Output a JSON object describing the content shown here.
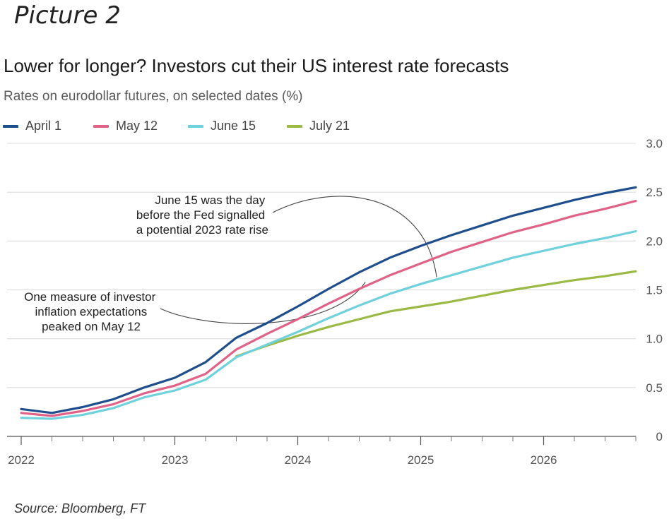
{
  "header": {
    "picture_label": "Picture 2"
  },
  "footer": {
    "source": "Source: Bloomberg, FT"
  },
  "chart_data": {
    "type": "line",
    "title": "Lower for longer? Investors cut their US interest rate forecasts",
    "subtitle": "Rates on eurodollar futures, on selected dates (%)",
    "xlabel": "",
    "ylabel": "",
    "x_ticks": [
      "2022",
      "2023",
      "2024",
      "2025",
      "2026"
    ],
    "x_tick_values": [
      2022.0,
      2023.25,
      2024.25,
      2025.25,
      2026.25
    ],
    "xlim": [
      2022.0,
      2027.0
    ],
    "y_ticks": [
      "0",
      "0.5",
      "1.0",
      "1.5",
      "2.0",
      "2.5",
      "3.0"
    ],
    "y_tick_values": [
      0,
      0.5,
      1.0,
      1.5,
      2.0,
      2.5,
      3.0
    ],
    "ylim": [
      0,
      3.0
    ],
    "grid": true,
    "y_axis_side": "right",
    "legend_position": "top-left",
    "x": [
      2022.0,
      2022.25,
      2022.5,
      2022.75,
      2023.0,
      2023.25,
      2023.5,
      2023.75,
      2024.0,
      2024.25,
      2024.5,
      2024.75,
      2025.0,
      2025.25,
      2025.5,
      2025.75,
      2026.0,
      2026.25,
      2026.5,
      2026.75,
      2027.0
    ],
    "series": [
      {
        "name": "April 1",
        "color": "#1f4e8c",
        "values": [
          0.28,
          0.24,
          0.3,
          0.38,
          0.5,
          0.6,
          0.76,
          1.01,
          1.16,
          1.33,
          1.51,
          1.68,
          1.83,
          1.95,
          2.06,
          2.16,
          2.26,
          2.34,
          2.42,
          2.49,
          2.55
        ]
      },
      {
        "name": "May 12",
        "color": "#e06287",
        "values": [
          0.24,
          0.21,
          0.26,
          0.33,
          0.44,
          0.52,
          0.64,
          0.89,
          1.05,
          1.2,
          1.36,
          1.51,
          1.65,
          1.77,
          1.89,
          1.99,
          2.09,
          2.17,
          2.26,
          2.33,
          2.41
        ]
      },
      {
        "name": "June 15",
        "color": "#6fd1dc",
        "values": [
          0.19,
          0.18,
          0.22,
          0.29,
          0.4,
          0.47,
          0.58,
          0.81,
          0.94,
          1.07,
          1.21,
          1.34,
          1.46,
          1.56,
          1.65,
          1.74,
          1.83,
          1.9,
          1.97,
          2.03,
          2.1
        ]
      },
      {
        "name": "July 21",
        "color": "#9aba45",
        "values": [
          null,
          null,
          null,
          null,
          null,
          null,
          null,
          0.82,
          0.93,
          1.03,
          1.12,
          1.2,
          1.28,
          1.33,
          1.38,
          1.44,
          1.5,
          1.55,
          1.6,
          1.64,
          1.69
        ]
      }
    ],
    "annotations": [
      {
        "lines": [
          "June 15 was the day",
          "before the Fed signalled",
          "a potential 2023 rate rise"
        ]
      },
      {
        "lines": [
          "One measure of investor",
          "inflation expectations",
          "peaked on May 12"
        ]
      }
    ]
  }
}
